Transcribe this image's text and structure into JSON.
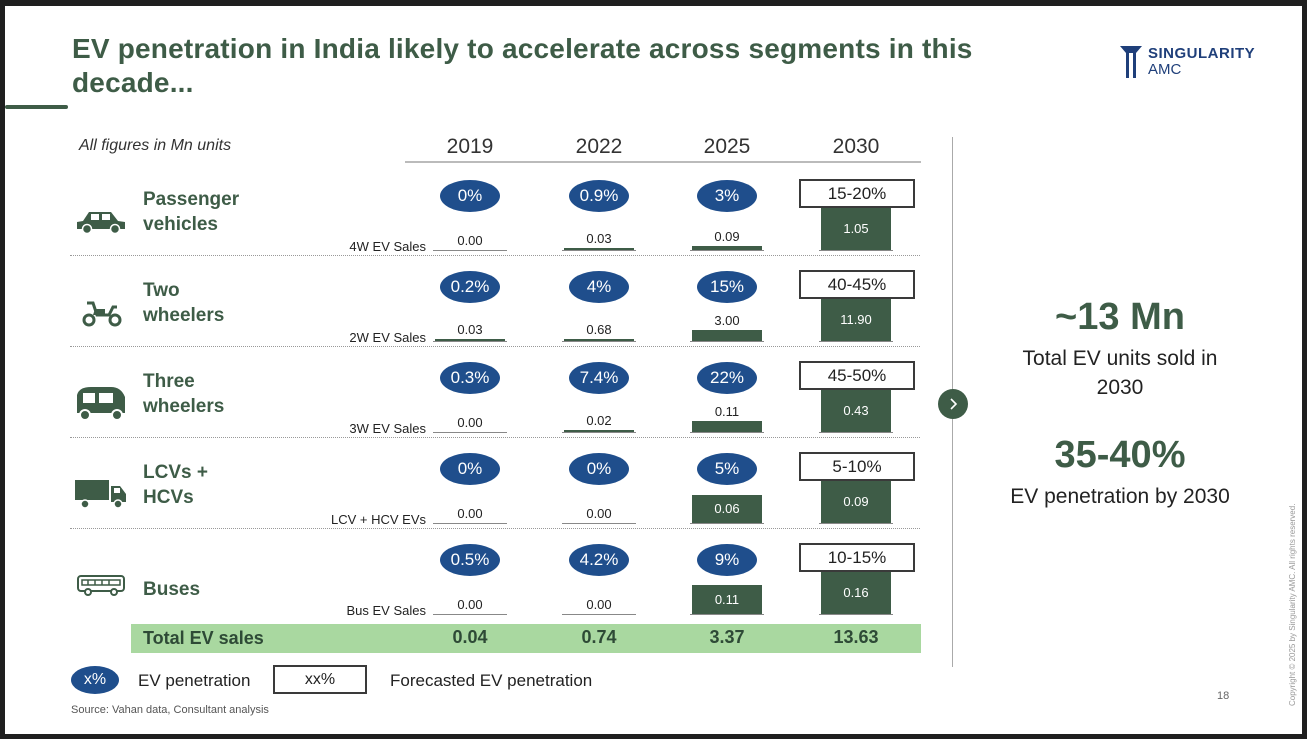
{
  "title": "EV penetration in India likely to accelerate across segments in this decade...",
  "logo": {
    "line1": "SINGULARITY",
    "line2": "AMC"
  },
  "units_note": "All figures in Mn units",
  "years": [
    "2019",
    "2022",
    "2025",
    "2030"
  ],
  "colors": {
    "green": "#3e5c47",
    "pill_blue": "#1f4e8c",
    "total_bg": "#a9d8a0"
  },
  "segments": [
    {
      "name1": "Passenger",
      "name2": "vehicles",
      "icon": "car-icon",
      "sales_label": "4W EV Sales",
      "penetration": [
        "0%",
        "0.9%",
        "3%"
      ],
      "forecast": "15-20%",
      "sales": [
        "0.00",
        "0.03",
        "0.09",
        "1.05"
      ]
    },
    {
      "name1": "Two",
      "name2": "wheelers",
      "icon": "scooter-icon",
      "sales_label": "2W EV Sales",
      "penetration": [
        "0.2%",
        "4%",
        "15%"
      ],
      "forecast": "40-45%",
      "sales": [
        "0.03",
        "0.68",
        "3.00",
        "11.90"
      ]
    },
    {
      "name1": "Three",
      "name2": "wheelers",
      "icon": "auto-rickshaw-icon",
      "sales_label": "3W EV Sales",
      "penetration": [
        "0.3%",
        "7.4%",
        "22%"
      ],
      "forecast": "45-50%",
      "sales": [
        "0.00",
        "0.02",
        "0.11",
        "0.43"
      ]
    },
    {
      "name1": "LCVs +",
      "name2": "HCVs",
      "icon": "truck-icon",
      "sales_label": "LCV + HCV EVs",
      "penetration": [
        "0%",
        "0%",
        "5%"
      ],
      "forecast": "5-10%",
      "sales": [
        "0.00",
        "0.00",
        "0.06",
        "0.09"
      ]
    },
    {
      "name1": "Buses",
      "name2": "",
      "icon": "bus-icon",
      "sales_label": "Bus EV Sales",
      "penetration": [
        "0.5%",
        "4.2%",
        "9%"
      ],
      "forecast": "10-15%",
      "sales": [
        "0.00",
        "0.00",
        "0.11",
        "0.16"
      ]
    }
  ],
  "total": {
    "label": "Total EV sales",
    "values": [
      "0.04",
      "0.74",
      "3.37",
      "13.63"
    ]
  },
  "summary": {
    "units_big": "~13 Mn",
    "units_sub": "Total EV units sold in 2030",
    "pen_big": "35-40%",
    "pen_sub": "EV penetration by 2030"
  },
  "legend": {
    "pill": "x%",
    "pill_label": "EV penetration",
    "box": "xx%",
    "box_label": "Forecasted EV penetration"
  },
  "source": "Source: Vahan data, Consultant analysis",
  "page_number": "18",
  "copyright": "Copyright © 2025 by Singularity AMC. All rights reserved."
}
